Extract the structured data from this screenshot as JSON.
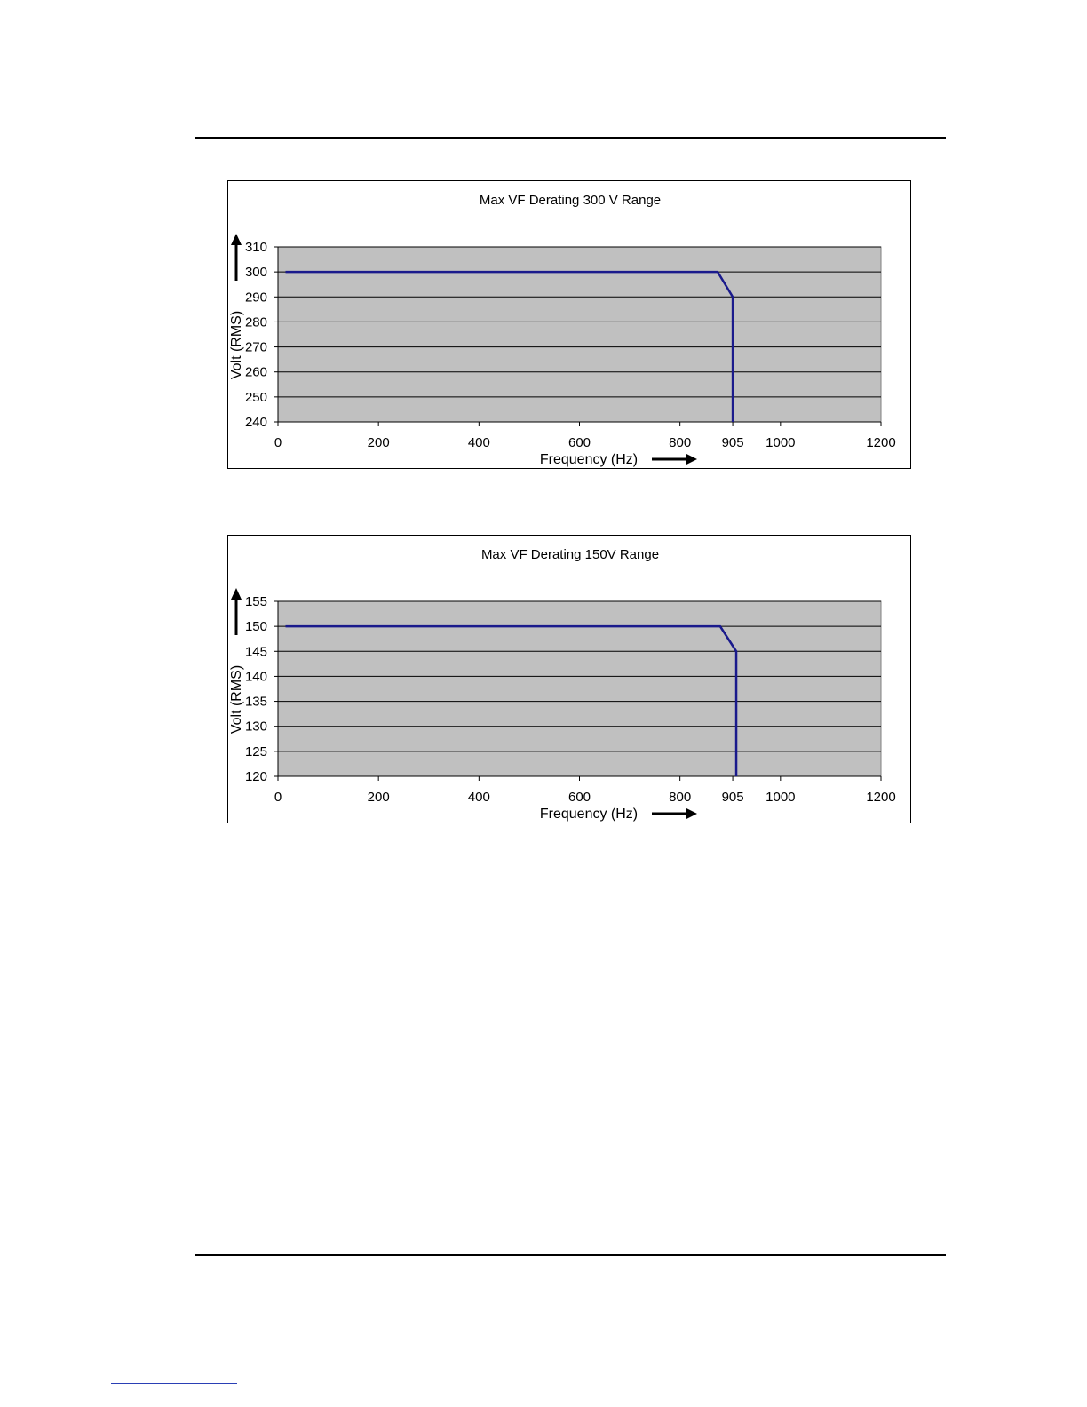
{
  "chart_data": [
    {
      "type": "line",
      "title": "Max VF Derating 300 V Range",
      "xlabel": "Frequency (Hz)",
      "ylabel": "Volt (RMS)",
      "xlim": [
        0,
        1200
      ],
      "ylim": [
        240,
        310
      ],
      "x_ticks": [
        "0",
        "200",
        "400",
        "600",
        "800",
        "905",
        "1000",
        "1200"
      ],
      "y_ticks": [
        "240",
        "250",
        "260",
        "270",
        "280",
        "290",
        "300",
        "310"
      ],
      "grid": "horizontal",
      "series": [
        {
          "x": [
            15,
            875,
            905,
            905
          ],
          "y": [
            300,
            300,
            290,
            240
          ],
          "color": "#1a1a8c"
        }
      ],
      "plot_background": "#c0c0c0"
    },
    {
      "type": "line",
      "title": "Max VF Derating 150V Range",
      "xlabel": "Frequency (Hz)",
      "ylabel": "Volt (RMS)",
      "xlim": [
        0,
        1200
      ],
      "ylim": [
        120,
        155
      ],
      "x_ticks": [
        "0",
        "200",
        "400",
        "600",
        "800",
        "905",
        "1000",
        "1200"
      ],
      "y_ticks": [
        "120",
        "125",
        "130",
        "135",
        "140",
        "145",
        "150",
        "155"
      ],
      "grid": "horizontal",
      "series": [
        {
          "x": [
            15,
            880,
            912,
            912
          ],
          "y": [
            150,
            150,
            145,
            120
          ],
          "color": "#1a1a8c"
        }
      ],
      "plot_background": "#c0c0c0"
    }
  ]
}
